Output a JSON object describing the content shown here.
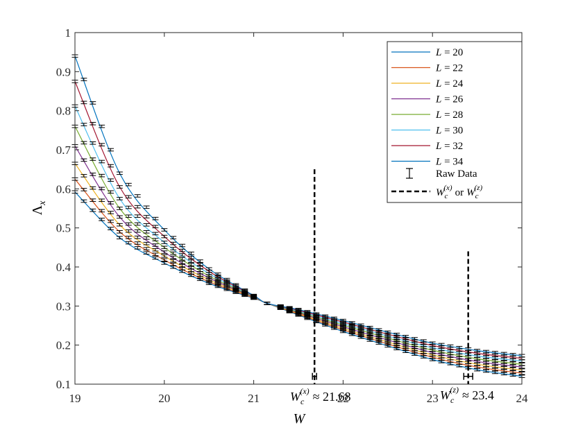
{
  "chart_data": {
    "type": "line",
    "title": "",
    "xlabel": "W",
    "ylabel": "Λ",
    "ylabel_sub": "x",
    "xlim": [
      19,
      24
    ],
    "ylim": [
      0.1,
      1.0
    ],
    "x_ticks": [
      19,
      20,
      21,
      22,
      23,
      24
    ],
    "x_tick_labels": [
      "19",
      "20",
      "21",
      "22",
      "23",
      "24"
    ],
    "y_ticks": [
      0.1,
      0.2,
      0.3,
      0.4,
      0.5,
      0.6,
      0.7,
      0.8,
      0.9,
      1.0
    ],
    "y_tick_labels": [
      "0.1",
      "0.2",
      "0.3",
      "0.4",
      "0.5",
      "0.6",
      "0.7",
      "0.8",
      "0.9",
      "1"
    ],
    "grid": false,
    "legend_position": "top-right",
    "series": [
      {
        "name": "L = 20",
        "L": 20,
        "color": "#0072BD",
        "x": [
          19.0,
          19.5,
          20.0,
          20.5,
          21.0,
          21.15,
          21.5,
          22.0,
          22.5,
          23.0,
          23.5,
          24.0
        ],
        "values": [
          0.592,
          0.475,
          0.41,
          0.358,
          0.32,
          0.307,
          0.277,
          0.235,
          0.198,
          0.163,
          0.137,
          0.12
        ]
      },
      {
        "name": "L = 22",
        "L": 22,
        "color": "#D95319",
        "x": [
          19.0,
          19.5,
          20.0,
          20.5,
          21.0,
          21.15,
          21.5,
          22.0,
          22.5,
          23.0,
          23.5,
          24.0
        ],
        "values": [
          0.625,
          0.49,
          0.418,
          0.362,
          0.321,
          0.307,
          0.279,
          0.239,
          0.203,
          0.169,
          0.144,
          0.128
        ]
      },
      {
        "name": "L = 24",
        "L": 24,
        "color": "#EDB120",
        "x": [
          19.0,
          19.5,
          20.0,
          20.5,
          21.0,
          21.15,
          21.5,
          22.0,
          22.5,
          23.0,
          23.5,
          24.0
        ],
        "values": [
          0.665,
          0.508,
          0.428,
          0.367,
          0.322,
          0.307,
          0.281,
          0.243,
          0.208,
          0.175,
          0.151,
          0.136
        ]
      },
      {
        "name": "L = 26",
        "L": 26,
        "color": "#7E2F8E",
        "x": [
          19.0,
          19.5,
          20.0,
          20.5,
          21.0,
          21.15,
          21.5,
          22.0,
          22.5,
          23.0,
          23.5,
          24.0
        ],
        "values": [
          0.71,
          0.528,
          0.438,
          0.372,
          0.323,
          0.307,
          0.283,
          0.247,
          0.213,
          0.181,
          0.158,
          0.144
        ]
      },
      {
        "name": "L = 28",
        "L": 28,
        "color": "#77AC30",
        "x": [
          19.0,
          19.5,
          20.0,
          20.5,
          21.0,
          21.15,
          21.5,
          22.0,
          22.5,
          23.0,
          23.5,
          24.0
        ],
        "values": [
          0.76,
          0.55,
          0.45,
          0.377,
          0.324,
          0.307,
          0.285,
          0.251,
          0.218,
          0.187,
          0.165,
          0.151
        ]
      },
      {
        "name": "L = 30",
        "L": 30,
        "color": "#4DBEEE",
        "x": [
          19.0,
          19.5,
          20.0,
          20.5,
          21.0,
          21.15,
          21.5,
          22.0,
          22.5,
          23.0,
          23.5,
          24.0
        ],
        "values": [
          0.812,
          0.575,
          0.463,
          0.383,
          0.325,
          0.307,
          0.287,
          0.255,
          0.223,
          0.193,
          0.172,
          0.159
        ]
      },
      {
        "name": "L = 32",
        "L": 32,
        "color": "#A2142F",
        "x": [
          19.0,
          19.5,
          20.0,
          20.5,
          21.0,
          21.15,
          21.5,
          22.0,
          22.5,
          23.0,
          23.5,
          24.0
        ],
        "values": [
          0.875,
          0.605,
          0.478,
          0.389,
          0.326,
          0.307,
          0.289,
          0.259,
          0.228,
          0.199,
          0.179,
          0.166
        ]
      },
      {
        "name": "L = 34",
        "L": 34,
        "color": "#0072BD",
        "x": [
          19.0,
          19.5,
          20.0,
          20.5,
          21.0,
          21.15,
          21.5,
          22.0,
          22.5,
          23.0,
          23.5,
          24.0
        ],
        "values": [
          0.94,
          0.64,
          0.495,
          0.395,
          0.327,
          0.307,
          0.291,
          0.263,
          0.233,
          0.205,
          0.186,
          0.173
        ]
      }
    ],
    "raw_data_label": "Raw Data",
    "raw_data_x": [
      19.0,
      19.1,
      19.2,
      19.3,
      19.4,
      19.5,
      19.6,
      19.7,
      19.8,
      19.9,
      20.0,
      20.1,
      20.2,
      20.3,
      20.4,
      20.5,
      20.6,
      20.7,
      20.8,
      20.9,
      21.0,
      21.15,
      21.3,
      21.4,
      21.5,
      21.6,
      21.7,
      21.8,
      21.9,
      22.0,
      22.1,
      22.2,
      22.3,
      22.4,
      22.5,
      22.6,
      22.7,
      22.8,
      22.9,
      23.0,
      23.1,
      23.2,
      23.3,
      23.4,
      23.5,
      23.6,
      23.7,
      23.8,
      23.9,
      24.0
    ],
    "critical_lines": [
      {
        "name": "W_c^(x)",
        "x": 21.68,
        "x_err": 0.02,
        "y_top": 0.65,
        "label_main": "W",
        "label_sub": "c",
        "label_sup": "(x)",
        "label_tail": "≈ 21.68"
      },
      {
        "name": "W_c^(z)",
        "x": 23.4,
        "x_err": 0.05,
        "y_top": 0.44,
        "label_main": "W",
        "label_sub": "c",
        "label_sup": "(z)",
        "label_tail": "≈ 23.4"
      }
    ],
    "legend_dashed_main": "W",
    "legend_dashed_sub": "c",
    "legend_dashed_sup_x": "(x)",
    "legend_dashed_or": "or",
    "legend_dashed_sup_z": "(z)"
  }
}
